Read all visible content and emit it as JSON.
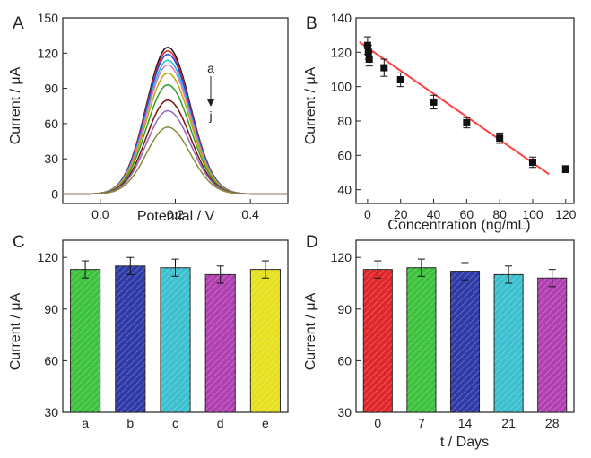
{
  "panels": [
    {
      "id": "A",
      "label": "A",
      "xlabel": "Potential / V",
      "ylabel": "Current / μA",
      "annot_top": "a",
      "annot_bottom": "j"
    },
    {
      "id": "B",
      "label": "B",
      "xlabel": "Concentration (ng/mL)",
      "ylabel": "Current / μA"
    },
    {
      "id": "C",
      "label": "C",
      "xlabel": "",
      "ylabel": "Current / μA"
    },
    {
      "id": "D",
      "label": "D",
      "xlabel": "t / Days",
      "ylabel": "Current / μA"
    }
  ],
  "chart_data": [
    {
      "panel": "A",
      "type": "line",
      "xlim": [
        -0.1,
        0.5
      ],
      "ylim": [
        -8,
        150
      ],
      "xticks": [
        0.0,
        0.2,
        0.4
      ],
      "yticks": [
        0,
        30,
        60,
        90,
        120,
        150
      ],
      "peak_x": 0.18,
      "baseline_y": 0,
      "series": [
        {
          "curve": "a",
          "peak": 125,
          "color": "#1a1a1a"
        },
        {
          "curve": "b",
          "peak": 122,
          "color": "#d62728"
        },
        {
          "curve": "c",
          "peak": 119,
          "color": "#3a3ad6"
        },
        {
          "curve": "d",
          "peak": 114,
          "color": "#17becf"
        },
        {
          "curve": "e",
          "peak": 110,
          "color": "#e377c2"
        },
        {
          "curve": "f",
          "peak": 103,
          "color": "#c0a800"
        },
        {
          "curve": "g",
          "peak": 93,
          "color": "#2ca02c"
        },
        {
          "curve": "h",
          "peak": 80,
          "color": "#7a1010"
        },
        {
          "curve": "i",
          "peak": 71,
          "color": "#9467bd"
        },
        {
          "curve": "j",
          "peak": 57,
          "color": "#8c8c3a"
        }
      ]
    },
    {
      "panel": "B",
      "type": "scatter",
      "xlim": [
        -7,
        125
      ],
      "ylim": [
        32,
        140
      ],
      "xticks": [
        0,
        20,
        40,
        60,
        80,
        100,
        120
      ],
      "yticks": [
        40,
        60,
        80,
        100,
        120,
        140
      ],
      "points": [
        {
          "x": 0,
          "y": 124,
          "err": 5
        },
        {
          "x": 0.5,
          "y": 120,
          "err": 4
        },
        {
          "x": 1,
          "y": 116,
          "err": 4
        },
        {
          "x": 10,
          "y": 111,
          "err": 5
        },
        {
          "x": 20,
          "y": 104,
          "err": 4
        },
        {
          "x": 40,
          "y": 91,
          "err": 4
        },
        {
          "x": 60,
          "y": 79,
          "err": 3
        },
        {
          "x": 80,
          "y": 70,
          "err": 3
        },
        {
          "x": 100,
          "y": 56,
          "err": 3
        },
        {
          "x": 120,
          "y": 52,
          "err": 2
        }
      ],
      "fit_line": {
        "x1": -5,
        "y1": 126,
        "x2": 110,
        "y2": 49,
        "color": "#ff4040"
      }
    },
    {
      "panel": "C",
      "type": "bar",
      "ylim": [
        30,
        130
      ],
      "yticks": [
        30,
        60,
        90,
        120
      ],
      "categories": [
        "a",
        "b",
        "c",
        "d",
        "e"
      ],
      "values": [
        113,
        115,
        114,
        110,
        113
      ],
      "errors": [
        5,
        5,
        5,
        5,
        5
      ],
      "colors": [
        "#3cc23c",
        "#2e3aa8",
        "#3cc0d0",
        "#b13fb1",
        "#e6e01e"
      ]
    },
    {
      "panel": "D",
      "type": "bar",
      "ylim": [
        30,
        130
      ],
      "yticks": [
        30,
        60,
        90,
        120
      ],
      "categories": [
        "0",
        "7",
        "14",
        "21",
        "28"
      ],
      "values": [
        113,
        114,
        112,
        110,
        108
      ],
      "errors": [
        5,
        5,
        5,
        5,
        5
      ],
      "colors": [
        "#e0262a",
        "#3cc23c",
        "#2e3aa8",
        "#3cc0d0",
        "#b13fb1"
      ]
    }
  ]
}
